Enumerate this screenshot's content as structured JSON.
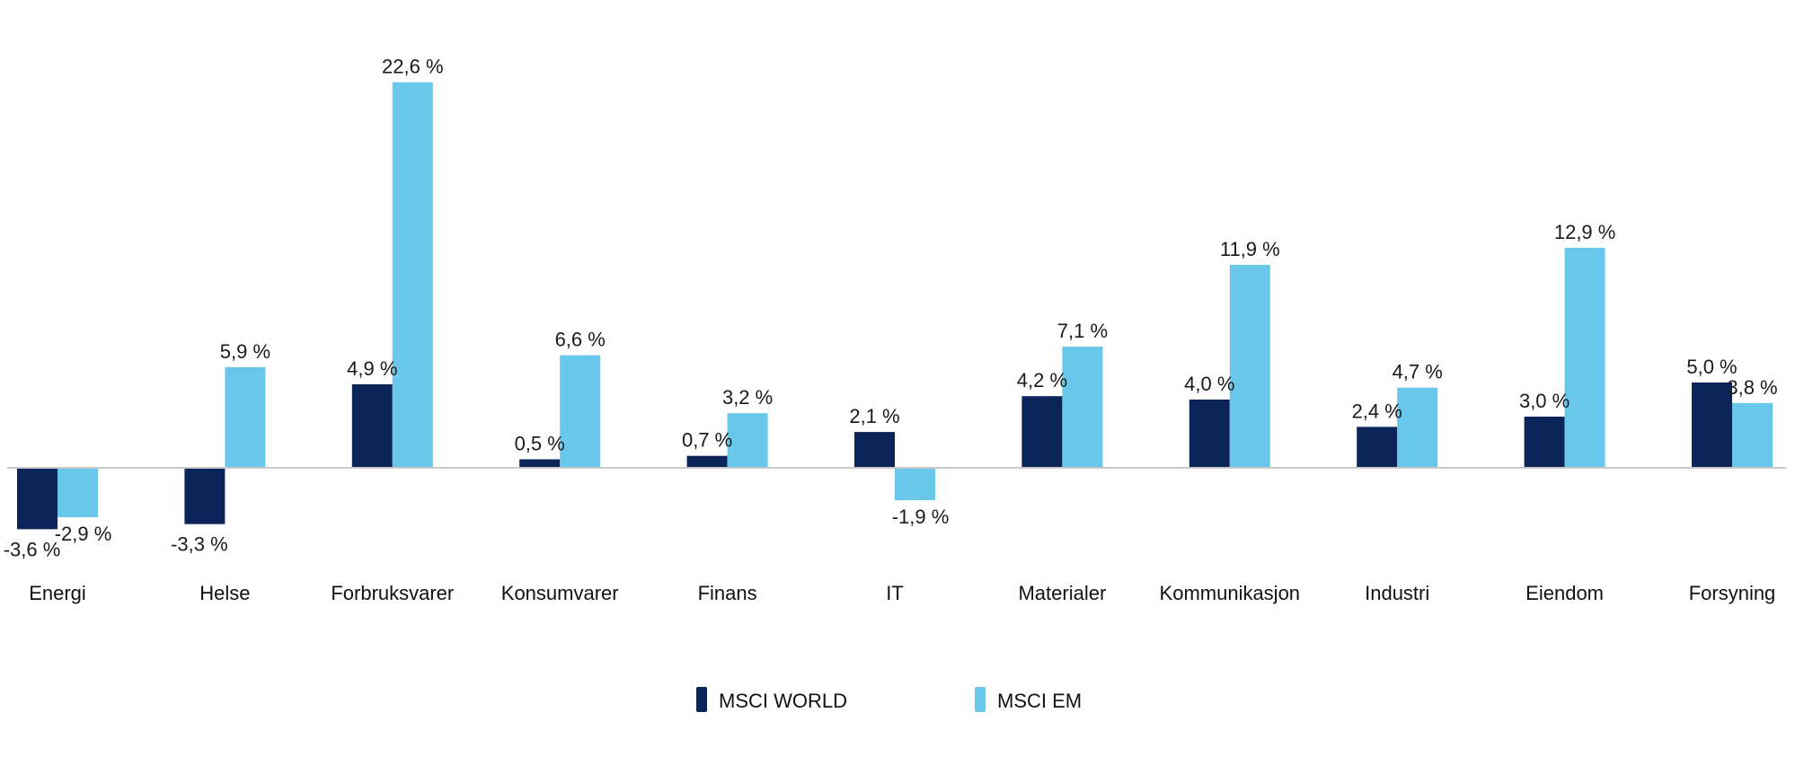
{
  "chart_data": {
    "type": "bar",
    "categories": [
      "Energi",
      "Helse",
      "Forbruksvarer",
      "Konsumvarer",
      "Finans",
      "IT",
      "Materialer",
      "Kommunikasjon",
      "Industri",
      "Eiendom",
      "Forsyning"
    ],
    "series": [
      {
        "name": "MSCI WORLD",
        "color": "#0b2559",
        "values": [
          -3.6,
          -3.3,
          4.9,
          0.5,
          0.7,
          2.1,
          4.2,
          4.0,
          2.4,
          3.0,
          5.0
        ],
        "labels": [
          "-3,6 %",
          "-3,3 %",
          "4,9 %",
          "0,5 %",
          "0,7 %",
          "2,1 %",
          "4,2 %",
          "4,0 %",
          "2,4 %",
          "3,0 %",
          "5,0 %"
        ]
      },
      {
        "name": "MSCI EM",
        "color": "#6ac7ec",
        "values": [
          -2.9,
          5.9,
          22.6,
          6.6,
          3.2,
          -1.9,
          7.1,
          11.9,
          4.7,
          12.9,
          3.8
        ],
        "labels": [
          "-2,9 %",
          "5,9 %",
          "22,6 %",
          "6,6 %",
          "3,2 %",
          "-1,9 %",
          "7,1 %",
          "11,9 %",
          "4,7 %",
          "12,9 %",
          "3,8 %"
        ]
      }
    ],
    "ylim": [
      -3.6,
      22.6
    ],
    "grid": false,
    "legend": "bottom-center",
    "axis_color": "#c8c8c8"
  }
}
